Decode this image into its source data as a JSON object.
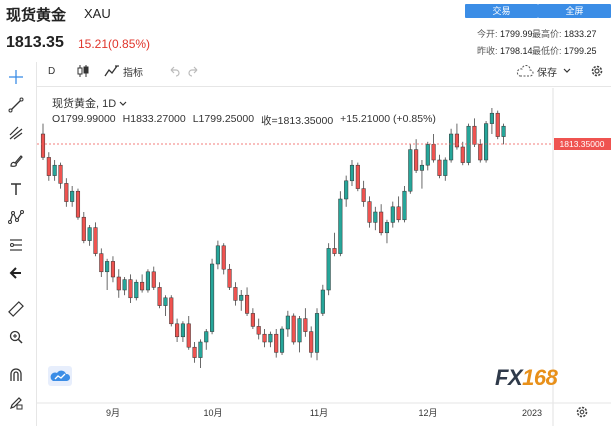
{
  "header": {
    "name": "现货黄金",
    "symbol": "XAU",
    "price": "1813.35",
    "change": "15.21(0.85%)",
    "buttons": {
      "trade": "交易",
      "fullscreen": "全屏"
    },
    "stats": {
      "open_label": "今开:",
      "open": "1799.99",
      "high_label": "最高价:",
      "high": "1833.27",
      "prevclose_label": "昨收:",
      "prevclose": "1798.14",
      "low_label": "最低价:",
      "low": "1799.25"
    }
  },
  "toolbar": {
    "interval": "D",
    "indicators_label": "指标",
    "save_label": "保存",
    "icons": [
      "candles-icon",
      "indicators-icon",
      "undo-icon",
      "redo-icon",
      "cloud-icon",
      "chevron-down-icon",
      "gear-icon"
    ]
  },
  "legend": {
    "title": "现货黄金, 1D",
    "open": "O1799.99000",
    "high": "H1833.27000",
    "low": "L1799.25000",
    "close": "收=1813.35000",
    "change": "+15.21000 (+0.85%)"
  },
  "price_tag": "1813.35000",
  "x_axis": {
    "labels": [
      "9月",
      "10月",
      "11月",
      "12月",
      "2023"
    ]
  },
  "left_tools": [
    "crosshair-icon",
    "trendline-icon",
    "pitchfork-icon",
    "brush-icon",
    "text-icon",
    "pattern-icon",
    "fib-icon",
    "back-arrow-icon",
    "ruler-icon",
    "zoom-icon",
    "magnet-icon",
    "lock-pencil-icon"
  ],
  "watermark": {
    "fx": "FX",
    "num": "168"
  },
  "colors": {
    "up": "#26a69a",
    "down": "#ef5350",
    "accent": "#3b8de6"
  },
  "chart_data": {
    "type": "candlestick",
    "title": "现货黄金, 1D",
    "xlabel": "",
    "ylabel": "",
    "last_price": 1813.35,
    "x_ticks": [
      "9月",
      "10月",
      "11月",
      "12月",
      "2023"
    ],
    "ohlc_scaled": [
      [
        0.9,
        0.94,
        0.8,
        0.81,
        0
      ],
      [
        0.81,
        0.83,
        0.72,
        0.74,
        0
      ],
      [
        0.74,
        0.8,
        0.72,
        0.78,
        1
      ],
      [
        0.78,
        0.79,
        0.69,
        0.71,
        0
      ],
      [
        0.71,
        0.73,
        0.62,
        0.64,
        0
      ],
      [
        0.64,
        0.7,
        0.62,
        0.68,
        1
      ],
      [
        0.68,
        0.69,
        0.57,
        0.58,
        0
      ],
      [
        0.58,
        0.6,
        0.48,
        0.49,
        0
      ],
      [
        0.49,
        0.55,
        0.47,
        0.54,
        1
      ],
      [
        0.54,
        0.56,
        0.43,
        0.44,
        0
      ],
      [
        0.44,
        0.46,
        0.35,
        0.37,
        0
      ],
      [
        0.37,
        0.42,
        0.3,
        0.41,
        1
      ],
      [
        0.41,
        0.43,
        0.33,
        0.35,
        0
      ],
      [
        0.35,
        0.38,
        0.27,
        0.3,
        0
      ],
      [
        0.3,
        0.35,
        0.28,
        0.34,
        1
      ],
      [
        0.34,
        0.36,
        0.25,
        0.27,
        0
      ],
      [
        0.27,
        0.34,
        0.26,
        0.33,
        1
      ],
      [
        0.33,
        0.36,
        0.29,
        0.3,
        0
      ],
      [
        0.3,
        0.38,
        0.29,
        0.37,
        1
      ],
      [
        0.37,
        0.39,
        0.3,
        0.31,
        0
      ],
      [
        0.31,
        0.33,
        0.23,
        0.24,
        0
      ],
      [
        0.24,
        0.28,
        0.2,
        0.27,
        1
      ],
      [
        0.27,
        0.28,
        0.16,
        0.17,
        0
      ],
      [
        0.17,
        0.19,
        0.1,
        0.12,
        0
      ],
      [
        0.12,
        0.18,
        0.1,
        0.17,
        1
      ],
      [
        0.17,
        0.2,
        0.07,
        0.08,
        0
      ],
      [
        0.08,
        0.1,
        0.02,
        0.04,
        0
      ],
      [
        0.04,
        0.11,
        0.0,
        0.1,
        1
      ],
      [
        0.1,
        0.15,
        0.07,
        0.14,
        1
      ],
      [
        0.14,
        0.42,
        0.13,
        0.4,
        1
      ],
      [
        0.4,
        0.49,
        0.38,
        0.47,
        1
      ],
      [
        0.47,
        0.48,
        0.36,
        0.38,
        0
      ],
      [
        0.38,
        0.4,
        0.3,
        0.31,
        0
      ],
      [
        0.31,
        0.33,
        0.24,
        0.26,
        0
      ],
      [
        0.26,
        0.3,
        0.22,
        0.28,
        1
      ],
      [
        0.28,
        0.31,
        0.2,
        0.21,
        0
      ],
      [
        0.21,
        0.23,
        0.15,
        0.16,
        0
      ],
      [
        0.16,
        0.19,
        0.11,
        0.13,
        0
      ],
      [
        0.13,
        0.15,
        0.08,
        0.1,
        0
      ],
      [
        0.1,
        0.14,
        0.08,
        0.13,
        1
      ],
      [
        0.13,
        0.15,
        0.04,
        0.06,
        0
      ],
      [
        0.06,
        0.16,
        0.05,
        0.15,
        1
      ],
      [
        0.15,
        0.22,
        0.12,
        0.2,
        1
      ],
      [
        0.2,
        0.21,
        0.09,
        0.1,
        0
      ],
      [
        0.1,
        0.2,
        0.06,
        0.19,
        1
      ],
      [
        0.19,
        0.23,
        0.12,
        0.14,
        0
      ],
      [
        0.14,
        0.16,
        0.04,
        0.06,
        0
      ],
      [
        0.06,
        0.23,
        0.03,
        0.21,
        1
      ],
      [
        0.21,
        0.32,
        0.2,
        0.3,
        1
      ],
      [
        0.3,
        0.48,
        0.28,
        0.46,
        1
      ],
      [
        0.46,
        0.52,
        0.43,
        0.44,
        0
      ],
      [
        0.44,
        0.68,
        0.43,
        0.65,
        1
      ],
      [
        0.65,
        0.74,
        0.62,
        0.72,
        1
      ],
      [
        0.72,
        0.8,
        0.7,
        0.78,
        1
      ],
      [
        0.78,
        0.79,
        0.68,
        0.69,
        0
      ],
      [
        0.69,
        0.72,
        0.62,
        0.64,
        0
      ],
      [
        0.64,
        0.66,
        0.54,
        0.56,
        0
      ],
      [
        0.56,
        0.62,
        0.53,
        0.6,
        1
      ],
      [
        0.6,
        0.63,
        0.51,
        0.52,
        0
      ],
      [
        0.52,
        0.57,
        0.48,
        0.56,
        1
      ],
      [
        0.56,
        0.64,
        0.54,
        0.62,
        1
      ],
      [
        0.62,
        0.66,
        0.56,
        0.57,
        0
      ],
      [
        0.57,
        0.7,
        0.56,
        0.68,
        1
      ],
      [
        0.68,
        0.86,
        0.67,
        0.84,
        1
      ],
      [
        0.84,
        0.88,
        0.75,
        0.76,
        0
      ],
      [
        0.76,
        0.8,
        0.69,
        0.78,
        1
      ],
      [
        0.78,
        0.87,
        0.76,
        0.86,
        1
      ],
      [
        0.86,
        0.9,
        0.79,
        0.8,
        0
      ],
      [
        0.8,
        0.82,
        0.73,
        0.74,
        0
      ],
      [
        0.74,
        0.81,
        0.72,
        0.8,
        1
      ],
      [
        0.8,
        0.92,
        0.79,
        0.9,
        1
      ],
      [
        0.9,
        0.94,
        0.84,
        0.85,
        0
      ],
      [
        0.85,
        0.87,
        0.78,
        0.79,
        0
      ],
      [
        0.79,
        0.94,
        0.78,
        0.93,
        1
      ],
      [
        0.93,
        0.96,
        0.85,
        0.86,
        0
      ],
      [
        0.86,
        0.88,
        0.79,
        0.8,
        0
      ],
      [
        0.8,
        0.95,
        0.79,
        0.94,
        1
      ],
      [
        0.94,
        1.0,
        0.9,
        0.98,
        1
      ],
      [
        0.98,
        0.99,
        0.88,
        0.89,
        0
      ],
      [
        0.89,
        0.94,
        0.86,
        0.93,
        1
      ]
    ]
  }
}
